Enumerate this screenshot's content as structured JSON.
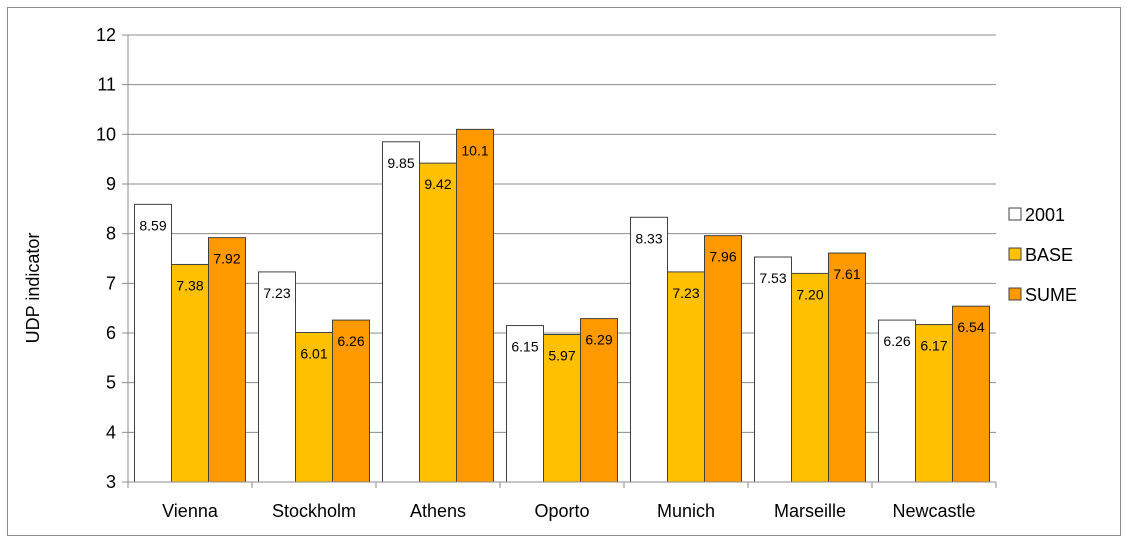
{
  "chart_data": {
    "type": "bar",
    "title": "",
    "xlabel": "",
    "ylabel": "UDP indicator",
    "ylim": [
      3,
      12
    ],
    "yticks": [
      "3",
      "4",
      "5",
      "6",
      "7",
      "8",
      "9",
      "10",
      "11",
      "12"
    ],
    "grid": true,
    "legend_position": "right",
    "categories": [
      "Vienna",
      "Stockholm",
      "Athens",
      "Oporto",
      "Munich",
      "Marseille",
      "Newcastle"
    ],
    "series": [
      {
        "name": "2001",
        "color": "#ffffff",
        "values": [
          8.59,
          7.23,
          9.85,
          6.15,
          8.33,
          7.53,
          6.26
        ],
        "labels": [
          "8.59",
          "7.23",
          "9.85",
          "6.15",
          "8.33",
          "7.53",
          "6.26"
        ]
      },
      {
        "name": "BASE",
        "color": "#ffc000",
        "values": [
          7.38,
          6.01,
          9.42,
          5.97,
          7.23,
          7.2,
          6.17
        ],
        "labels": [
          "7.38",
          "6.01",
          "9.42",
          "5.97",
          "7.23",
          "7.20",
          "6.17"
        ]
      },
      {
        "name": "SUME",
        "color": "#ff9900",
        "values": [
          7.92,
          6.26,
          10.1,
          6.29,
          7.96,
          7.61,
          6.54
        ],
        "labels": [
          "7.92",
          "6.26",
          "10.1",
          "6.29",
          "7.96",
          "7.61",
          "6.54"
        ]
      }
    ]
  }
}
